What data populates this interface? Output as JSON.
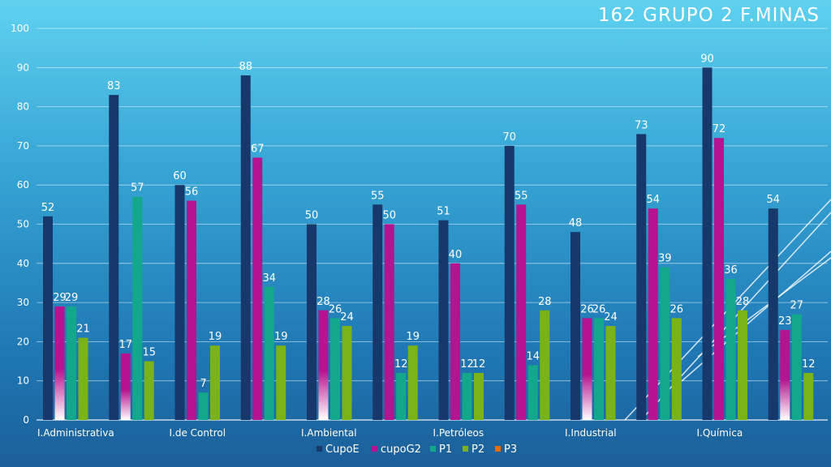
{
  "slide": {
    "title": "162  GRUPO 2  F.MINAS"
  },
  "chart_data": {
    "type": "bar",
    "title": "162  GRUPO 2  F.MINAS",
    "xlabel": "",
    "ylabel": "",
    "ylim": [
      0,
      100
    ],
    "yticks": [
      0,
      10,
      20,
      30,
      40,
      50,
      60,
      70,
      80,
      90,
      100
    ],
    "grid": true,
    "legend_position": "bottom",
    "categories": [
      "I.Administrativa",
      "",
      "I.de Control",
      "",
      "I.Ambiental",
      "",
      "I.Petróleos",
      "",
      "I.Industrial",
      "",
      "I.Química",
      ""
    ],
    "series": [
      {
        "name": "CupoE",
        "color": "#17386b",
        "values": [
          52,
          83,
          60,
          88,
          50,
          55,
          51,
          70,
          48,
          73,
          90,
          54
        ]
      },
      {
        "name": "cupoG2",
        "color": "#b5138f",
        "values": [
          29,
          17,
          56,
          67,
          28,
          50,
          40,
          55,
          26,
          54,
          72,
          23
        ]
      },
      {
        "name": "P1",
        "color": "#13a88c",
        "values": [
          29,
          57,
          7,
          34,
          26,
          12,
          12,
          14,
          26,
          39,
          36,
          27
        ]
      },
      {
        "name": "P2",
        "color": "#7ab317",
        "values": [
          21,
          15,
          19,
          19,
          24,
          19,
          12,
          28,
          24,
          26,
          28,
          12
        ]
      },
      {
        "name": "P3",
        "color": "#e46c0a",
        "values": [
          null,
          null,
          null,
          null,
          null,
          null,
          null,
          null,
          null,
          null,
          null,
          null
        ]
      }
    ]
  }
}
